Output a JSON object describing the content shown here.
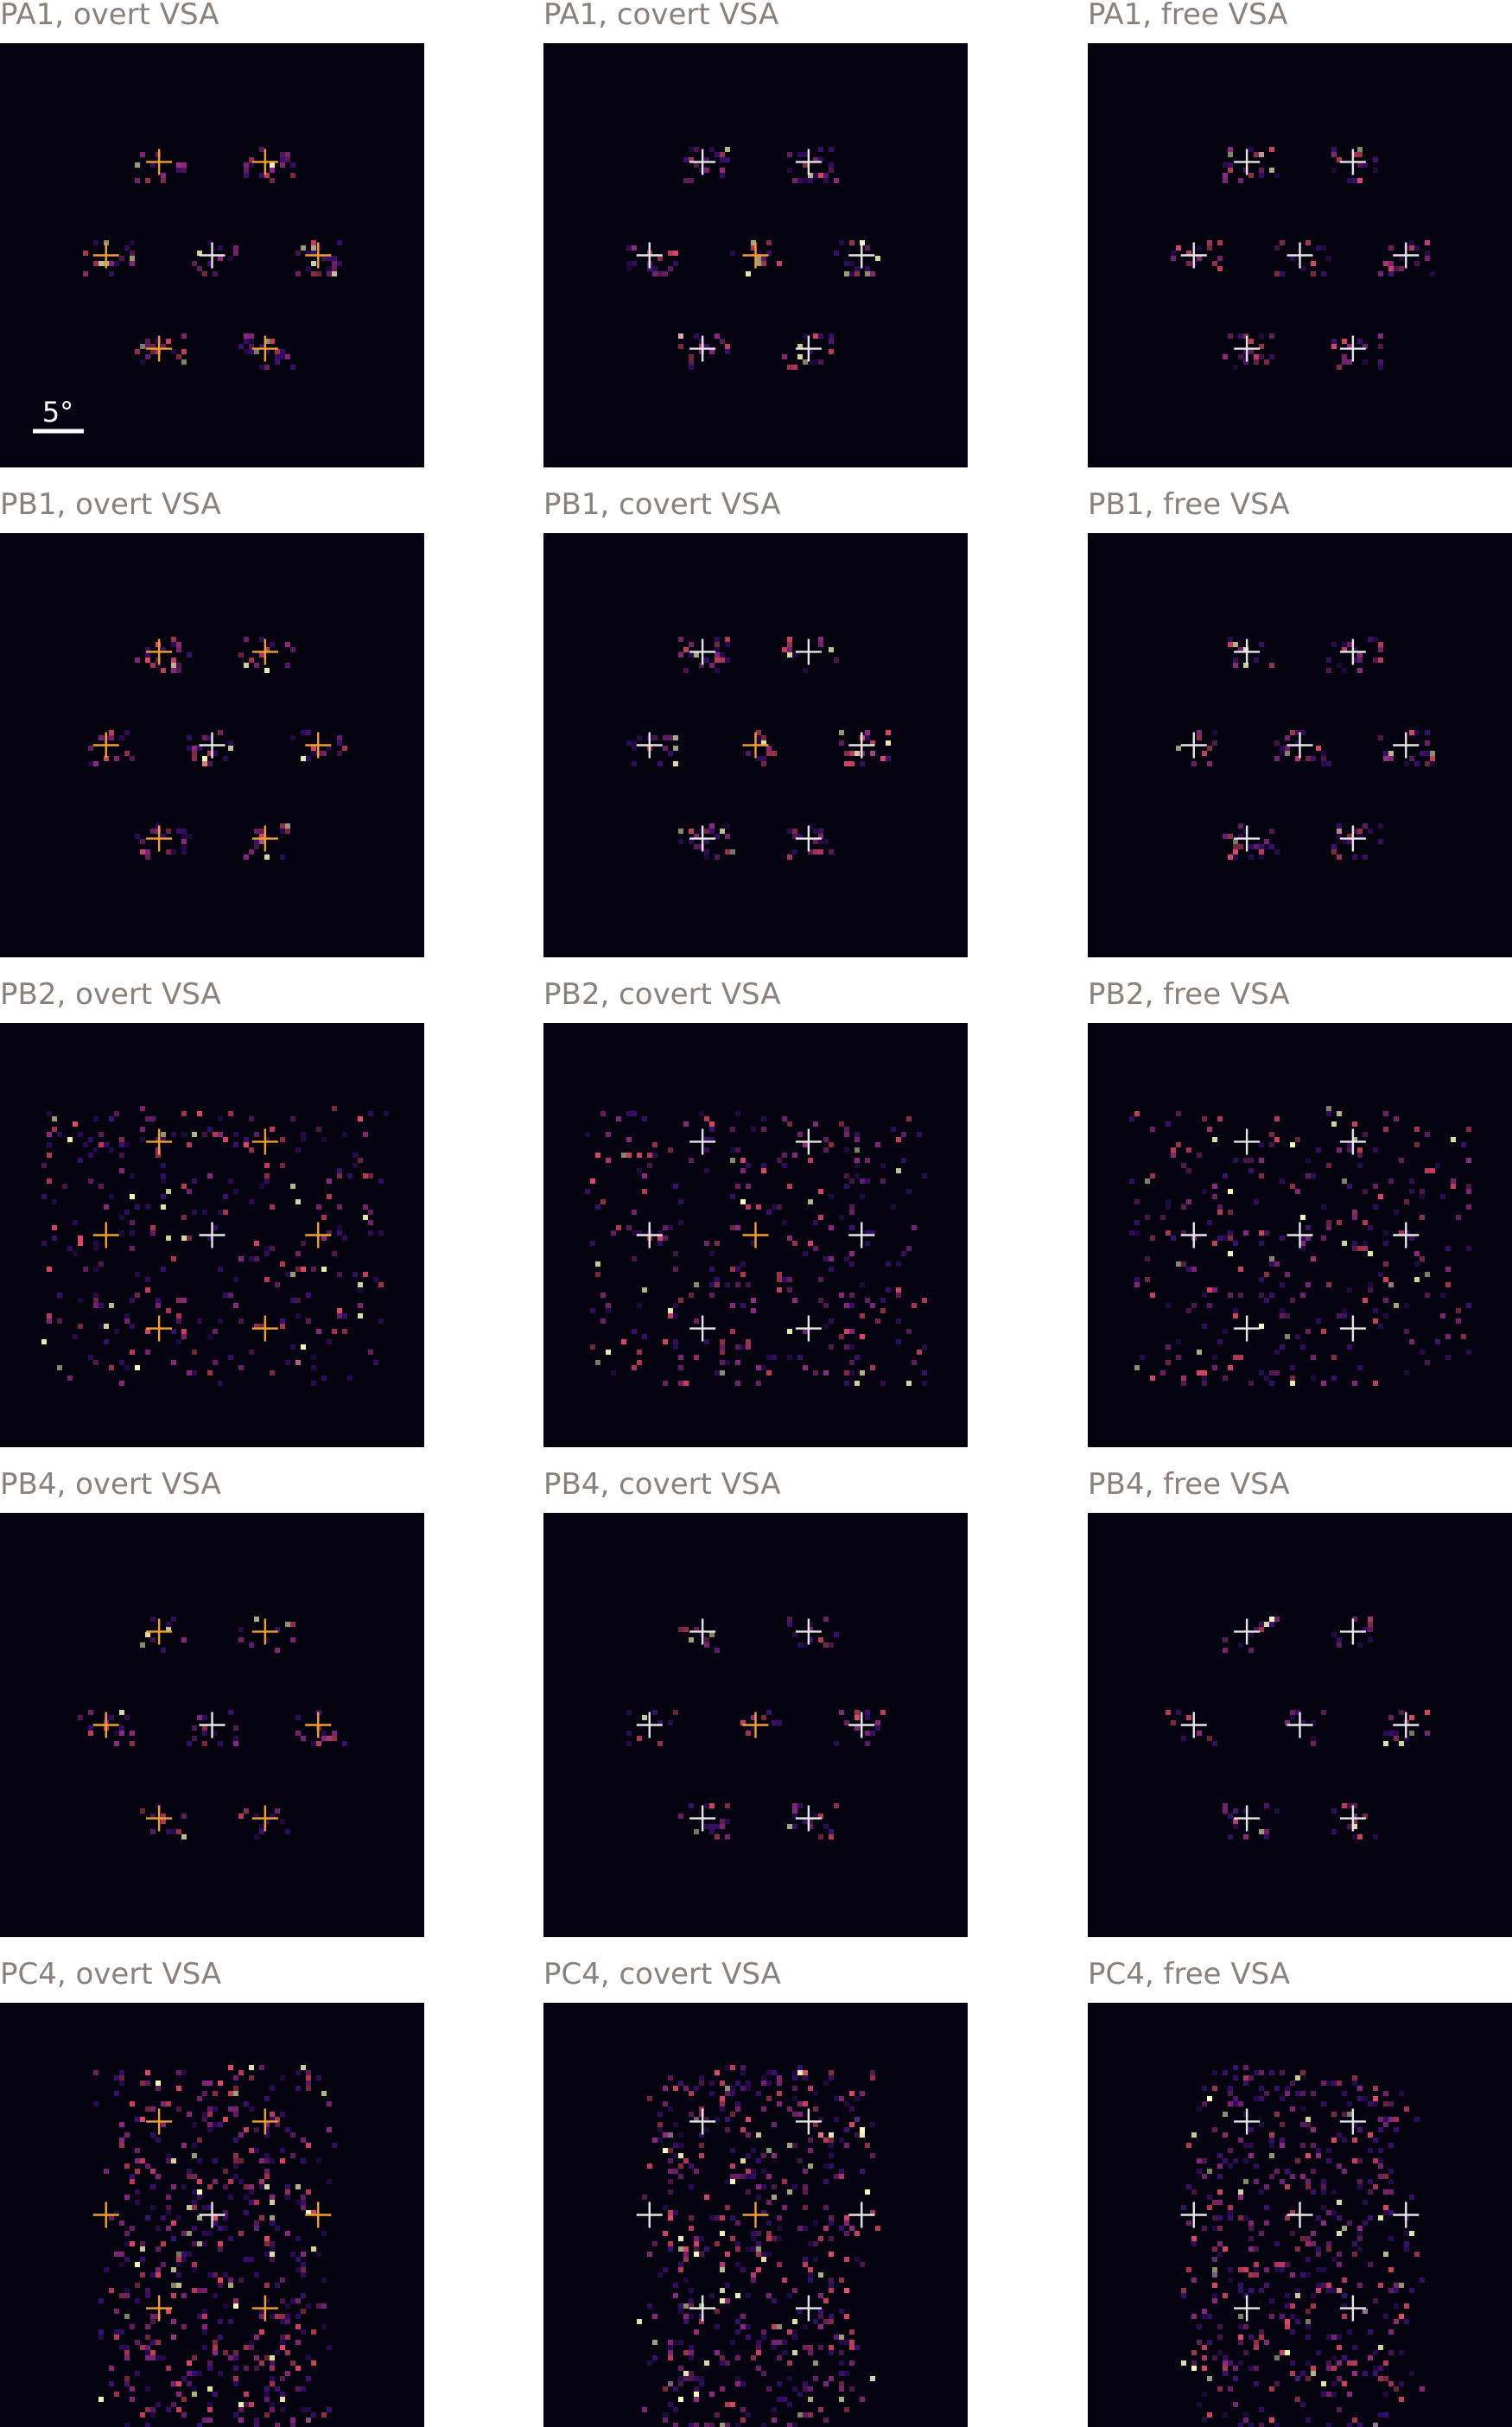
{
  "figure": {
    "colors": {
      "background": "#05030f",
      "title": "#8a817c",
      "cross_orange": "#f0a030",
      "cross_white": "#e6e6e6",
      "heat_low": "#3b0f70",
      "heat_mid": "#8c2981",
      "heat_high": "#de4968",
      "heat_peak": "#fcfdbf"
    },
    "scale_bar_label": "5°",
    "panels": [
      {
        "title": "PA1, overt VSA"
      },
      {
        "title": "PA1, covert VSA"
      },
      {
        "title": "PA1, free VSA"
      },
      {
        "title": "PB1, overt VSA"
      },
      {
        "title": "PB1, covert VSA"
      },
      {
        "title": "PB1, free VSA"
      },
      {
        "title": "PB2, overt VSA"
      },
      {
        "title": "PB2, covert VSA"
      },
      {
        "title": "PB2, free VSA"
      },
      {
        "title": "PB4, overt VSA"
      },
      {
        "title": "PB4, covert VSA"
      },
      {
        "title": "PB4, free VSA"
      },
      {
        "title": "PC4, overt VSA"
      },
      {
        "title": "PC4, covert VSA"
      },
      {
        "title": "PC4, free VSA"
      }
    ]
  }
}
